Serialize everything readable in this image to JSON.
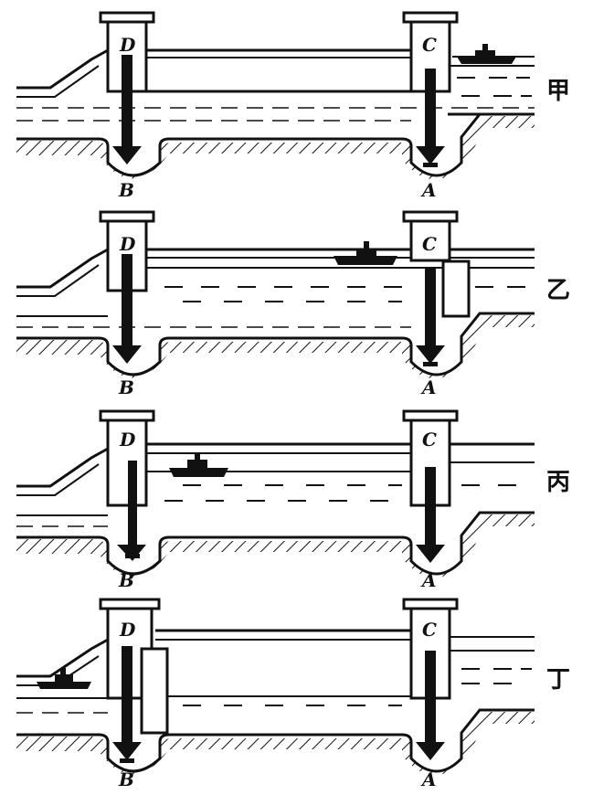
{
  "panels": [
    {
      "id": "jia",
      "label": "甲",
      "labels": {
        "d": "D",
        "c": "C",
        "b": "B",
        "a": "A"
      },
      "water_level": "upstream-high, chamber-low",
      "ship": "upstream-left",
      "gate_d": "closed",
      "gate_c": "closed",
      "valve_b": "open",
      "valve_a": "closed"
    },
    {
      "id": "yi",
      "label": "乙",
      "labels": {
        "d": "D",
        "c": "C",
        "b": "B",
        "a": "A"
      },
      "water_level": "chamber-high",
      "ship": "in-chamber-right",
      "gate_d": "closed",
      "gate_c": "open",
      "valve_b": "closed",
      "valve_a": "open"
    },
    {
      "id": "bing",
      "label": "丙",
      "labels": {
        "d": "D",
        "c": "C",
        "b": "B",
        "a": "A"
      },
      "water_level": "chamber-high",
      "ship": "in-chamber-left",
      "gate_d": "closed",
      "gate_c": "closed",
      "valve_b": "closed",
      "valve_a": "closed"
    },
    {
      "id": "ding",
      "label": "丁",
      "labels": {
        "d": "D",
        "c": "C",
        "b": "B",
        "a": "A"
      },
      "water_level": "chamber-low",
      "ship": "downstream-left",
      "gate_d": "open",
      "gate_c": "closed",
      "valve_b": "open",
      "valve_a": "closed"
    }
  ],
  "colors": {
    "ink": "#111111",
    "paper": "#ffffff"
  }
}
